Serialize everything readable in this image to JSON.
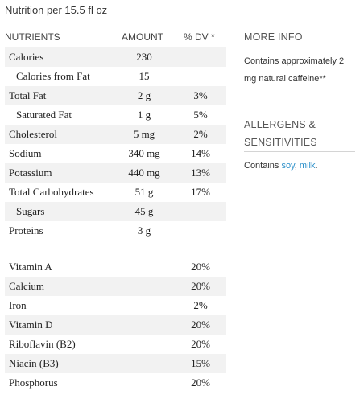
{
  "title": "Nutrition per 15.5 fl oz",
  "headers": {
    "nutrients": "NUTRIENTS",
    "amount": "AMOUNT",
    "dv": "% DV *"
  },
  "nutrients": [
    {
      "name": "Calories",
      "amount": "230",
      "dv": ""
    },
    {
      "name": "Calories from Fat",
      "amount": "15",
      "dv": ""
    },
    {
      "name": "Total Fat",
      "amount": "2 g",
      "dv": "3%"
    },
    {
      "name": "Saturated Fat",
      "amount": "1 g",
      "dv": "5%"
    },
    {
      "name": "Cholesterol",
      "amount": "5 mg",
      "dv": "2%"
    },
    {
      "name": "Sodium",
      "amount": "340 mg",
      "dv": "14%"
    },
    {
      "name": "Potassium",
      "amount": "440 mg",
      "dv": "13%"
    },
    {
      "name": "Total Carbohydrates",
      "amount": "51 g",
      "dv": "17%"
    },
    {
      "name": "Sugars",
      "amount": "45 g",
      "dv": ""
    },
    {
      "name": "Proteins",
      "amount": "3 g",
      "dv": ""
    }
  ],
  "vitamins": [
    {
      "name": "Vitamin A",
      "dv": "20%"
    },
    {
      "name": "Calcium",
      "dv": "20%"
    },
    {
      "name": "Iron",
      "dv": "2%"
    },
    {
      "name": "Vitamin D",
      "dv": "20%"
    },
    {
      "name": "Riboflavin (B2)",
      "dv": "20%"
    },
    {
      "name": "Niacin (B3)",
      "dv": "15%"
    },
    {
      "name": "Phosphorus",
      "dv": "20%"
    }
  ],
  "more_info": {
    "heading": "MORE INFO",
    "text": "Contains approximately 2 mg natural caffeine**"
  },
  "allergens": {
    "heading_line1": "ALLERGENS &",
    "heading_line2": "SENSITIVITIES",
    "prefix": "Contains ",
    "items": [
      "soy",
      "milk"
    ],
    "separator": ", ",
    "suffix": ".",
    "link_color": "#2a8fc9"
  }
}
